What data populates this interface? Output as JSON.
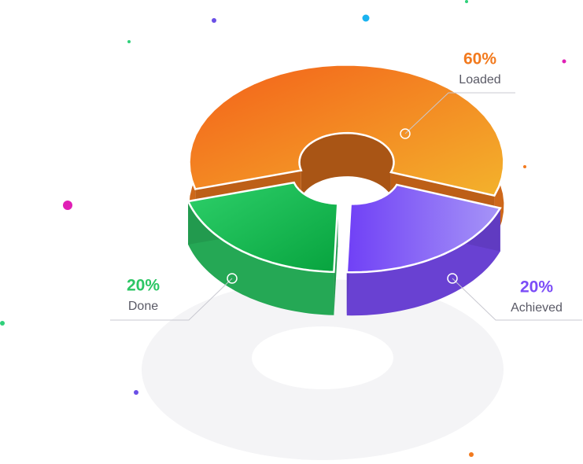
{
  "chart_data": {
    "type": "pie",
    "categories": [
      "Loaded",
      "Done",
      "Achieved"
    ],
    "values": [
      60,
      20,
      20
    ],
    "value_labels": [
      "60%",
      "20%",
      "20%"
    ],
    "colors": [
      "#f27a1e",
      "#2cc664",
      "#7b4cf7"
    ]
  }
}
